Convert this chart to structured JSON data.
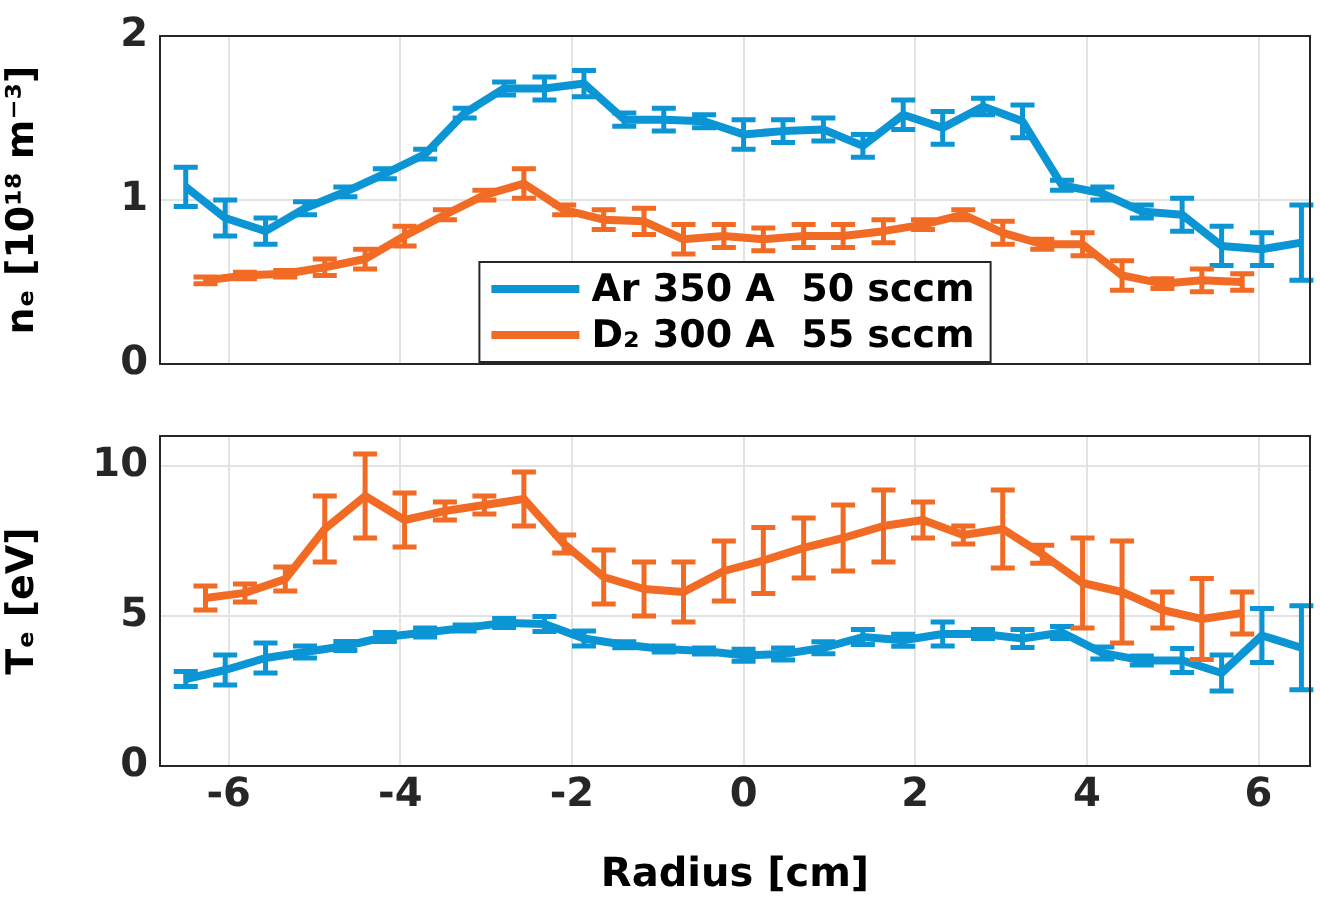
{
  "chart_data": [
    {
      "type": "line",
      "ylabel": "nₑ [10¹⁸ m⁻³]",
      "xlim": [
        -6.8,
        6.6
      ],
      "xticks": [
        -6,
        -4,
        -2,
        0,
        2,
        4,
        6
      ],
      "ylim": [
        0,
        2
      ],
      "yticks": [
        0,
        1,
        2
      ],
      "grid": true,
      "legend": "bottom",
      "tick_labels": "y",
      "series": [
        {
          "name": "Ar 350 A  50 sccm",
          "color": "#0b95d4",
          "x": [
            -6.5,
            -6.04,
            -5.57,
            -5.11,
            -4.64,
            -4.18,
            -3.71,
            -3.25,
            -2.79,
            -2.32,
            -1.86,
            -1.39,
            -0.93,
            -0.46,
            0,
            0.46,
            0.93,
            1.39,
            1.86,
            2.32,
            2.79,
            3.25,
            3.71,
            4.18,
            4.64,
            5.11,
            5.57,
            6.04,
            6.5
          ],
          "values": [
            1.08,
            0.89,
            0.81,
            0.95,
            1.05,
            1.16,
            1.28,
            1.53,
            1.68,
            1.68,
            1.71,
            1.49,
            1.49,
            1.48,
            1.4,
            1.42,
            1.43,
            1.33,
            1.52,
            1.44,
            1.57,
            1.48,
            1.09,
            1.04,
            0.93,
            0.91,
            0.72,
            0.7,
            0.74
          ],
          "errors": [
            0.12,
            0.11,
            0.08,
            0.04,
            0.03,
            0.03,
            0.03,
            0.03,
            0.04,
            0.07,
            0.08,
            0.04,
            0.07,
            0.04,
            0.09,
            0.07,
            0.07,
            0.07,
            0.09,
            0.1,
            0.05,
            0.1,
            0.03,
            0.04,
            0.04,
            0.1,
            0.12,
            0.1,
            0.23
          ]
        },
        {
          "name": "D₂ 300 A  55 sccm",
          "color": "#f26b24",
          "x": [
            -6.27,
            -5.81,
            -5.34,
            -4.88,
            -4.41,
            -3.95,
            -3.48,
            -3.02,
            -2.56,
            -2.09,
            -1.63,
            -1.16,
            -0.7,
            -0.23,
            0.23,
            0.7,
            1.16,
            1.63,
            2.09,
            2.56,
            3.02,
            3.48,
            3.95,
            4.41,
            4.88,
            5.34,
            5.81
          ],
          "values": [
            0.51,
            0.54,
            0.55,
            0.59,
            0.64,
            0.78,
            0.91,
            1.03,
            1.1,
            0.94,
            0.88,
            0.87,
            0.76,
            0.78,
            0.76,
            0.78,
            0.78,
            0.81,
            0.85,
            0.91,
            0.8,
            0.73,
            0.73,
            0.54,
            0.49,
            0.51,
            0.5
          ],
          "errors": [
            0.02,
            0.02,
            0.02,
            0.05,
            0.06,
            0.06,
            0.03,
            0.03,
            0.09,
            0.03,
            0.06,
            0.08,
            0.09,
            0.07,
            0.07,
            0.07,
            0.07,
            0.07,
            0.03,
            0.03,
            0.07,
            0.03,
            0.07,
            0.09,
            0.03,
            0.07,
            0.05
          ]
        }
      ]
    },
    {
      "type": "line",
      "ylabel": "Tₑ [eV]",
      "xlabel": "Radius [cm]",
      "xlim": [
        -6.8,
        6.6
      ],
      "xticks": [
        -6,
        -4,
        -2,
        0,
        2,
        4,
        6
      ],
      "ylim": [
        0,
        11
      ],
      "yticks": [
        0,
        5,
        10
      ],
      "grid": true,
      "series": [
        {
          "color": "#0b95d4",
          "x": [
            -6.5,
            -6.04,
            -5.57,
            -5.11,
            -4.64,
            -4.18,
            -3.71,
            -3.25,
            -2.79,
            -2.32,
            -1.86,
            -1.39,
            -0.93,
            -0.46,
            0,
            0.46,
            0.93,
            1.39,
            1.86,
            2.32,
            2.79,
            3.25,
            3.71,
            4.18,
            4.64,
            5.11,
            5.57,
            6.04,
            6.5
          ],
          "values": [
            2.9,
            3.2,
            3.6,
            3.8,
            4.0,
            4.3,
            4.45,
            4.6,
            4.77,
            4.73,
            4.25,
            4.04,
            3.9,
            3.83,
            3.69,
            3.73,
            3.94,
            4.3,
            4.19,
            4.4,
            4.4,
            4.25,
            4.45,
            3.77,
            3.52,
            3.52,
            3.1,
            4.35,
            3.94
          ],
          "errors": [
            0.25,
            0.5,
            0.5,
            0.2,
            0.15,
            0.15,
            0.15,
            0.1,
            0.15,
            0.25,
            0.25,
            0.1,
            0.1,
            0.1,
            0.2,
            0.2,
            0.2,
            0.25,
            0.2,
            0.4,
            0.15,
            0.3,
            0.2,
            0.2,
            0.15,
            0.4,
            0.6,
            0.9,
            1.4
          ]
        },
        {
          "color": "#f26b24",
          "x": [
            -6.27,
            -5.81,
            -5.34,
            -4.88,
            -4.41,
            -3.95,
            -3.48,
            -3.02,
            -2.56,
            -2.09,
            -1.63,
            -1.16,
            -0.7,
            -0.23,
            0.23,
            0.7,
            1.16,
            1.63,
            2.09,
            2.56,
            3.02,
            3.48,
            3.95,
            4.41,
            4.88,
            5.34,
            5.81
          ],
          "values": [
            5.6,
            5.77,
            6.23,
            7.9,
            9.0,
            8.2,
            8.5,
            8.7,
            8.9,
            7.4,
            6.3,
            5.9,
            5.8,
            6.5,
            6.85,
            7.27,
            7.6,
            8.0,
            8.2,
            7.7,
            7.9,
            7.06,
            6.1,
            5.8,
            5.2,
            4.9,
            5.1
          ],
          "errors": [
            0.4,
            0.3,
            0.4,
            1.1,
            1.4,
            0.9,
            0.3,
            0.3,
            0.9,
            0.3,
            0.9,
            0.9,
            1.0,
            1.0,
            1.1,
            1.0,
            1.1,
            1.2,
            0.6,
            0.3,
            1.3,
            0.3,
            1.5,
            1.7,
            0.6,
            1.35,
            0.7
          ]
        }
      ]
    }
  ]
}
